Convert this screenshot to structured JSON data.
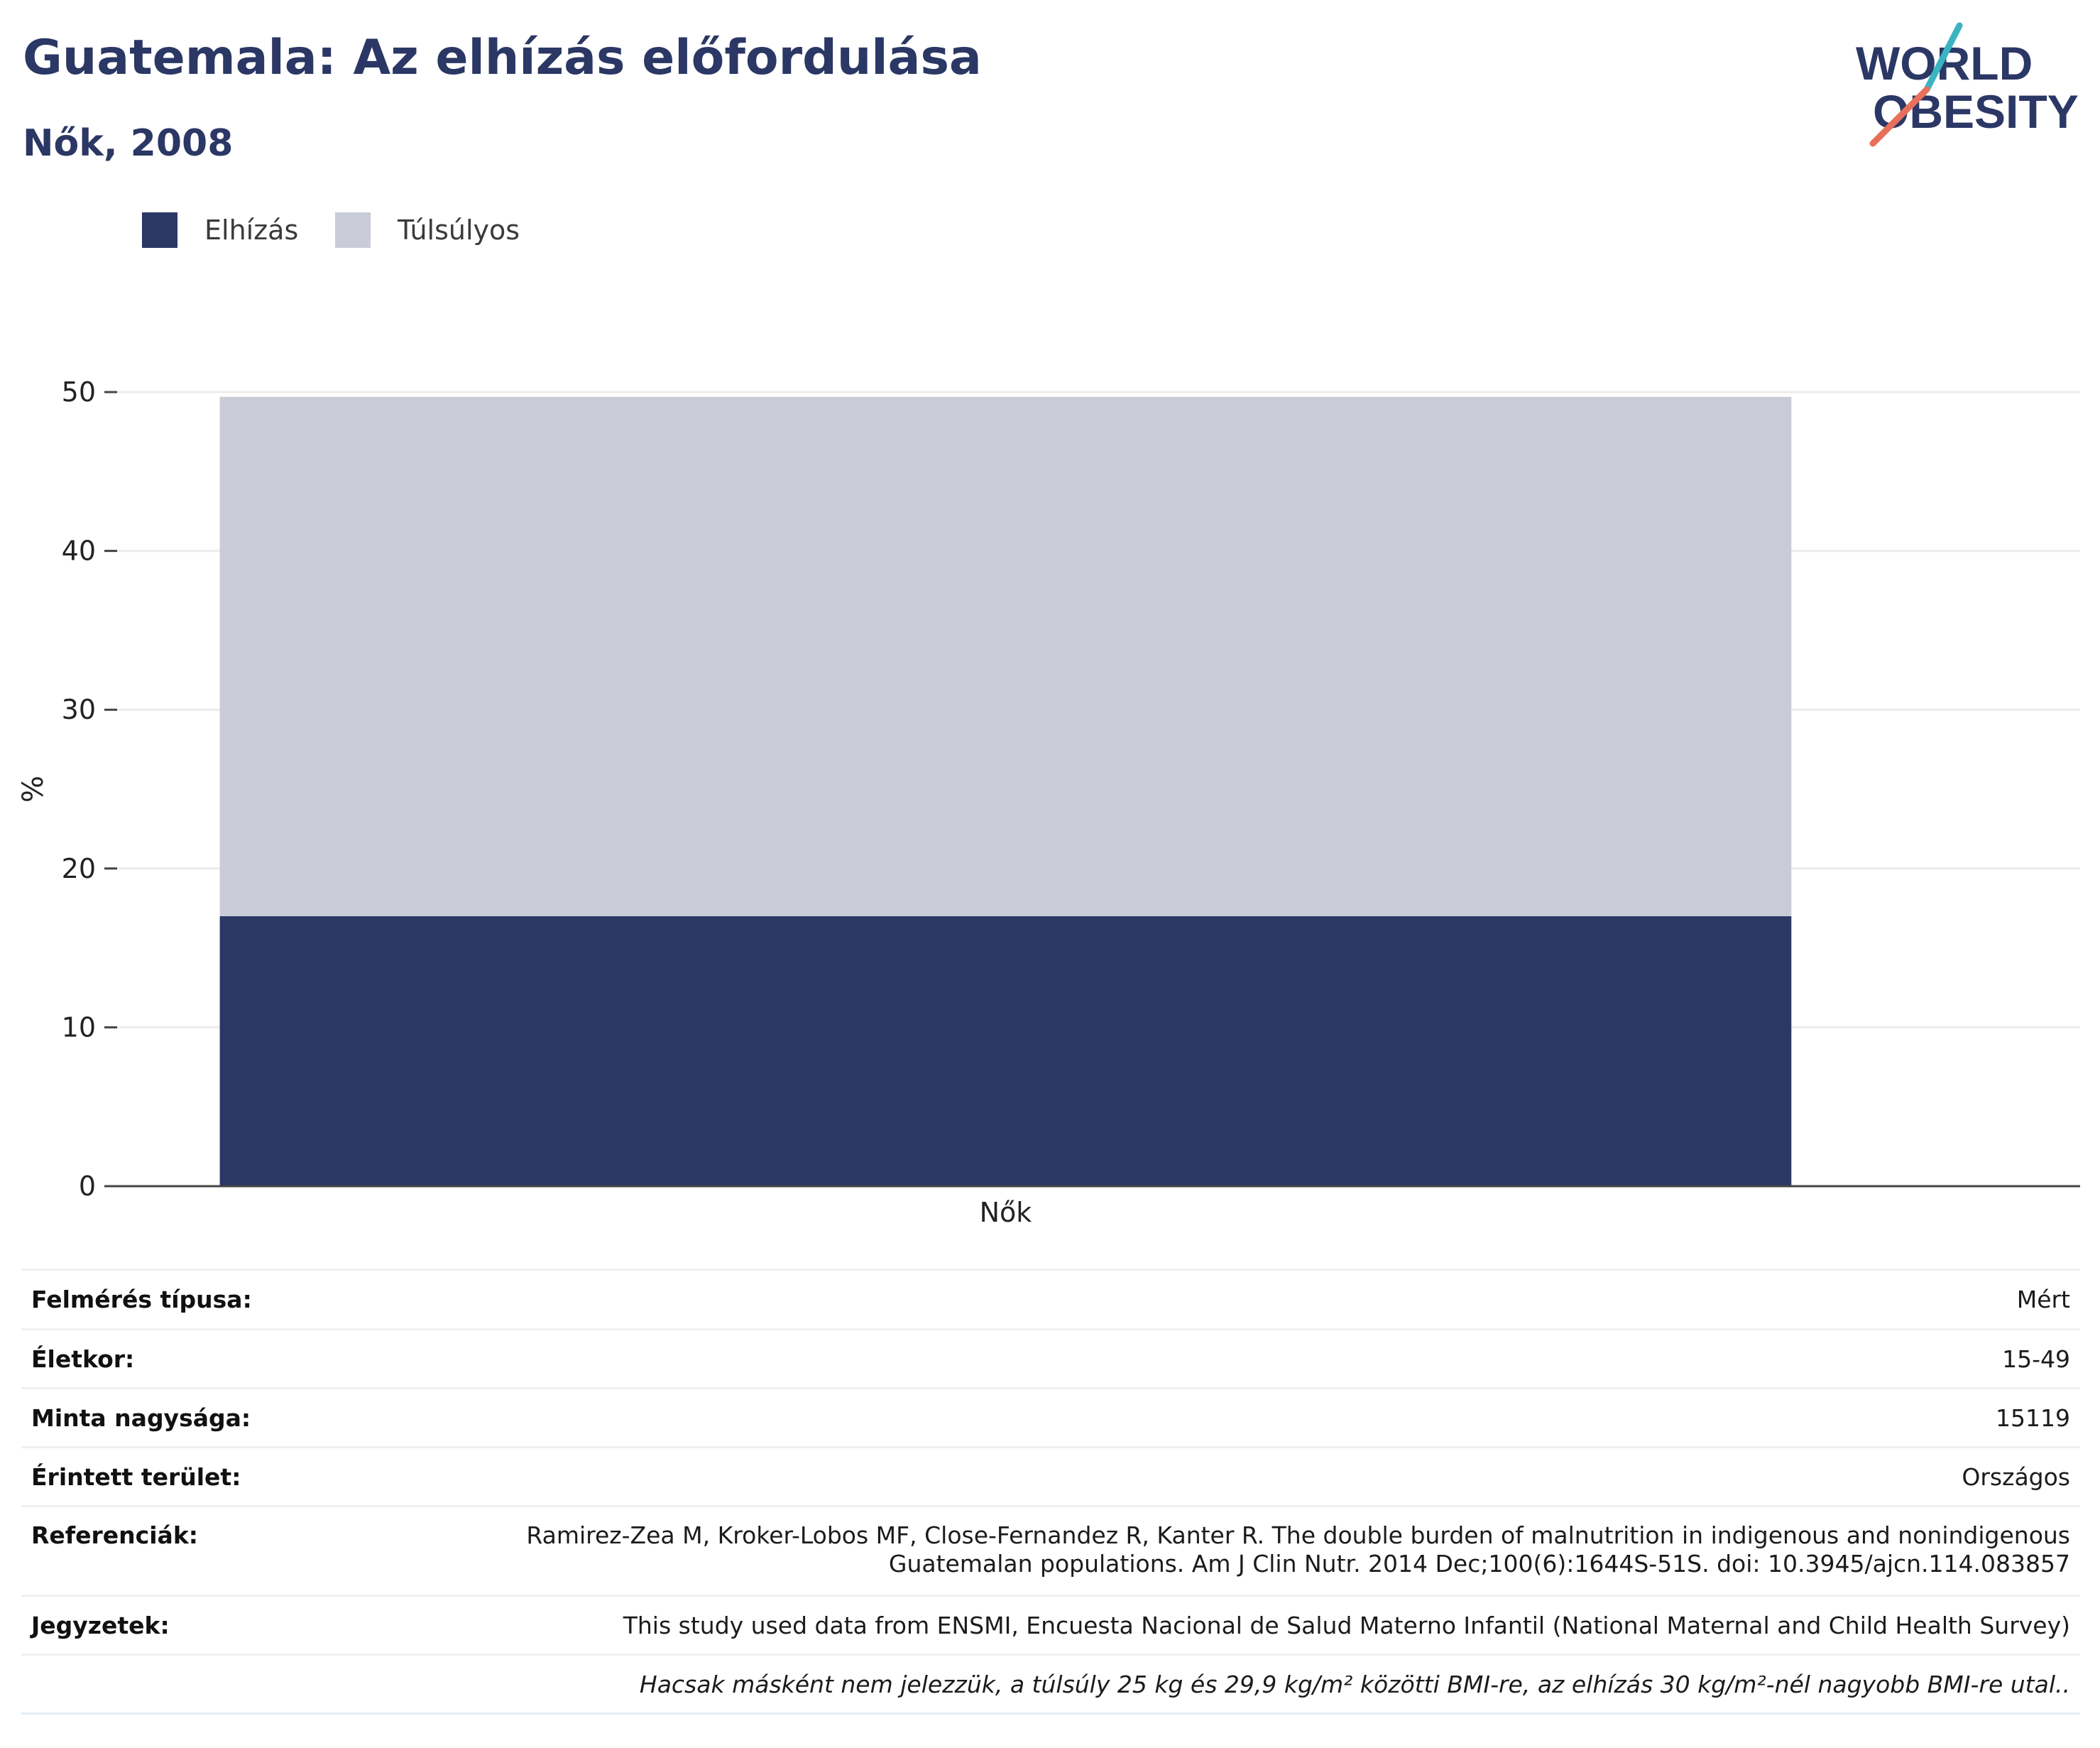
{
  "header": {
    "title": "Guatemala: Az elhízás előfordulása",
    "subtitle": "Nők, 2008"
  },
  "logo": {
    "line1": "WORLD",
    "line2": "OBESITY",
    "colors": {
      "text": "#2b3764",
      "slash_top": "#3bb4c1",
      "slash_bottom": "#e8705a"
    }
  },
  "legend": [
    {
      "label": "Elhízás",
      "color": "#2b3764"
    },
    {
      "label": "Túlsúlyos",
      "color": "#c9ccd7"
    }
  ],
  "chart_data": {
    "type": "bar",
    "stacked": true,
    "categories": [
      "Nők"
    ],
    "series": [
      {
        "name": "Elhízás",
        "values": [
          17.0
        ],
        "color": "#2b3764"
      },
      {
        "name": "Túlsúlyos",
        "values": [
          32.7
        ],
        "color": "#c9ccd7"
      }
    ],
    "ylabel": "%",
    "xlabel": "",
    "ylim": [
      0,
      50
    ],
    "yticks": [
      0,
      10,
      20,
      30,
      40,
      50
    ],
    "grid": true,
    "legend_position": "top-left"
  },
  "details": [
    {
      "label": "Felmérés típusa:",
      "value": "Mért"
    },
    {
      "label": "Életkor:",
      "value": "15-49"
    },
    {
      "label": "Minta nagysága:",
      "value": "15119"
    },
    {
      "label": "Érintett terület:",
      "value": "Országos"
    },
    {
      "label": "Referenciák:",
      "value_lines": [
        "Ramirez-Zea M, Kroker-Lobos MF, Close-Fernandez R, Kanter R. The double burden of malnutrition in indigenous and nonindigenous",
        "Guatemalan populations. Am J Clin Nutr. 2014 Dec;100(6):1644S-51S. doi: 10.3945/ajcn.114.083857"
      ]
    },
    {
      "label": "Jegyzetek:",
      "value": "This study used data from ENSMI, Encuesta Nacional de Salud Materno Infantil (National Maternal and Child Health Survey)"
    }
  ],
  "footnote": "Hacsak másként nem jelezzük, a túlsúly 25 kg és 29,9 kg/m² közötti BMI-re, az elhízás 30 kg/m²-nél nagyobb BMI-re utal.."
}
